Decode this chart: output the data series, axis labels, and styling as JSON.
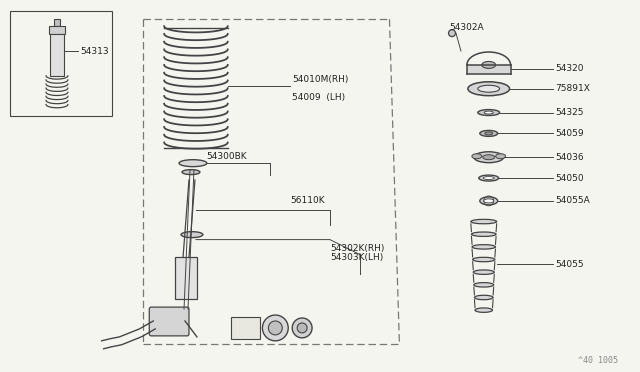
{
  "bg_color": "#f5f5f0",
  "line_color": "#444444",
  "text_color": "#222222",
  "dashed_color": "#777777",
  "footer": "^40 1005",
  "labels": {
    "small_box": "54313",
    "spring": [
      "54010M(RH)",
      "54009  (LH)"
    ],
    "seat": "54300BK",
    "strut": "56110K",
    "strut_lower": [
      "54302K(RH)",
      "54303K(LH)"
    ],
    "right_top": "54302A",
    "right_parts": [
      "54320",
      "75891X",
      "54325",
      "54059",
      "54036",
      "54050",
      "54055A",
      "54055"
    ]
  }
}
